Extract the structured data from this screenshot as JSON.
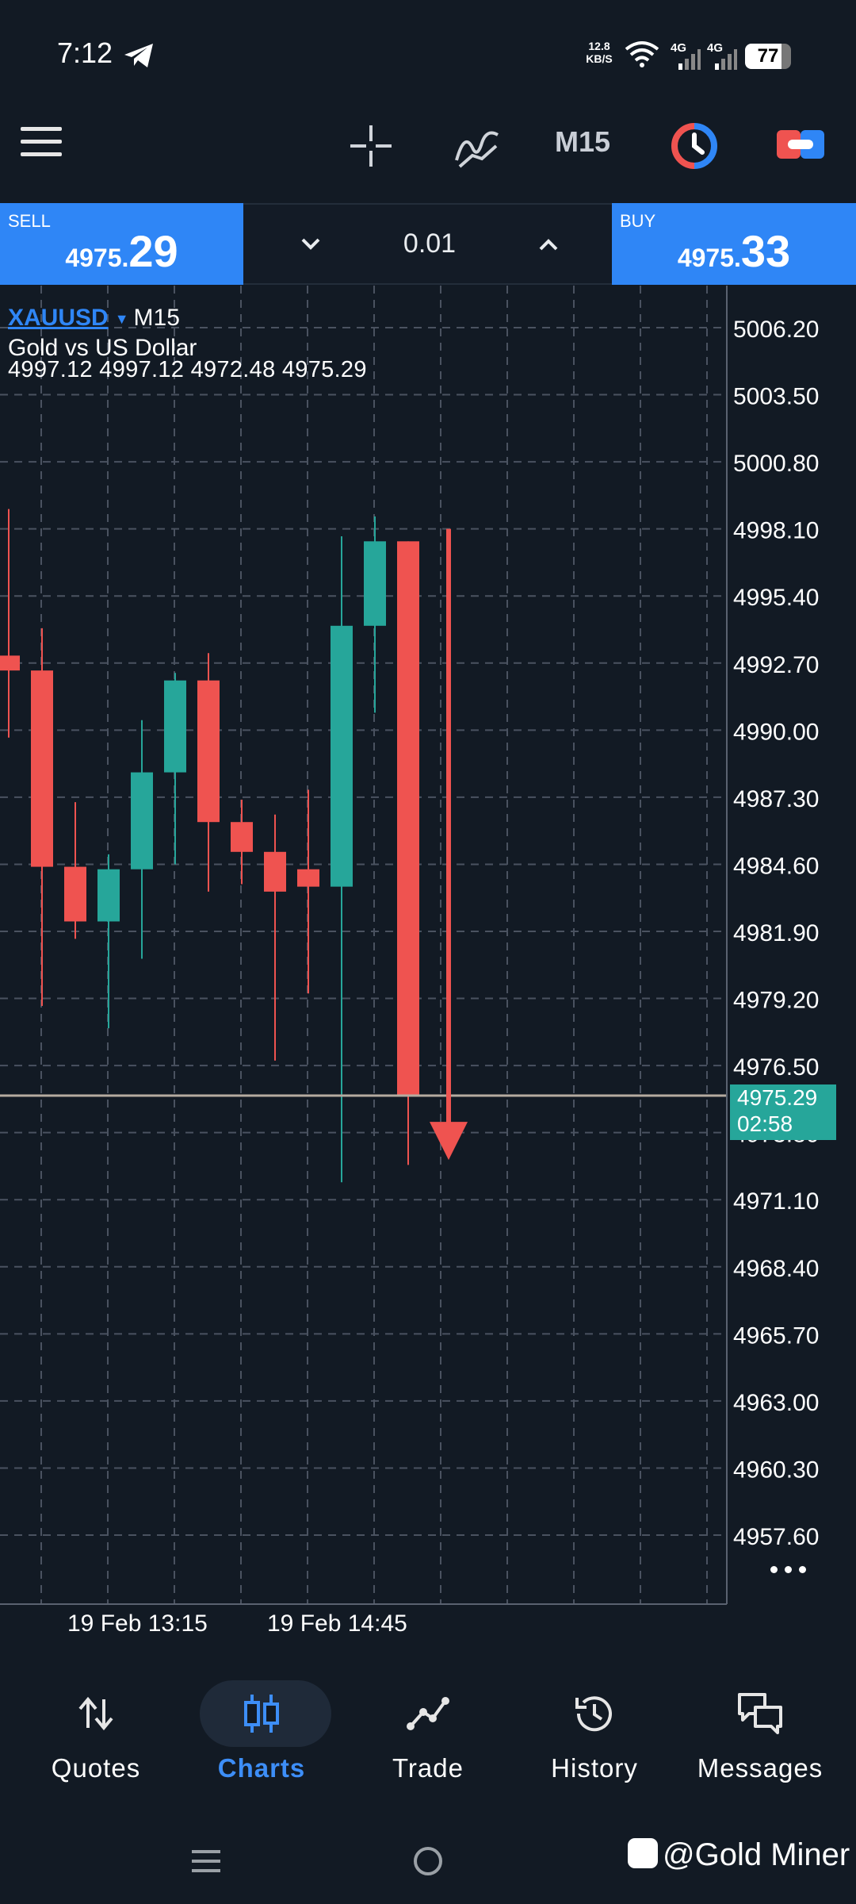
{
  "status_bar": {
    "time": "7:12",
    "net_speed_value": "12.8",
    "net_speed_unit": "KB/S",
    "signal_1": "4G",
    "signal_2": "4G",
    "battery": "77"
  },
  "toolbar": {
    "timeframe": "M15",
    "icons": [
      "menu-icon",
      "crosshair-icon",
      "indicator-icon",
      "objects-icon",
      "one-click-trading-icon"
    ],
    "colors": {
      "objects_icon": "#ef5350",
      "objects_icon_accent": "#2f86f6",
      "oneclick_icon": "#2f86f6",
      "oneclick_icon_accent": "#ef5350"
    }
  },
  "trade_bar": {
    "sell_label": "SELL",
    "sell_price_small": "4975.",
    "sell_price_big": "29",
    "buy_label": "BUY",
    "buy_price_small": "4975.",
    "buy_price_big": "33",
    "volume": "0.01",
    "accent": "#2f86f6"
  },
  "symbol": {
    "name": "XAUUSD",
    "timeframe": "M15",
    "description": "Gold vs US Dollar",
    "ohlc": "4997.12 4997.12 4972.48 4975.29"
  },
  "price_tag": {
    "price": "4975.29",
    "countdown": "02:58",
    "color": "#26a69a"
  },
  "chart_data": {
    "type": "candlestick",
    "bull_color": "#26a69a",
    "bear_color": "#ef5350",
    "y_ticks": [
      "5006.20",
      "5003.50",
      "5000.80",
      "4998.10",
      "4995.40",
      "4992.70",
      "4990.00",
      "4987.30",
      "4984.60",
      "4981.90",
      "4979.20",
      "4976.50",
      "4973.80",
      "4971.10",
      "4968.40",
      "4965.70",
      "4963.00",
      "4960.30",
      "4957.60"
    ],
    "ylim": [
      4955.0,
      5008.8
    ],
    "x_labels": [
      {
        "label": "19 Feb 13:15",
        "index": 1
      },
      {
        "label": "19 Feb 14:45",
        "index": 7
      }
    ],
    "current_price": 4975.29,
    "candles": [
      {
        "open": 4993.0,
        "high": 4998.9,
        "low": 4989.7,
        "close": 4992.4
      },
      {
        "open": 4992.4,
        "high": 4994.1,
        "low": 4978.9,
        "close": 4984.5
      },
      {
        "open": 4984.5,
        "high": 4987.1,
        "low": 4981.6,
        "close": 4982.3
      },
      {
        "open": 4982.3,
        "high": 4985.0,
        "low": 4978.0,
        "close": 4984.4
      },
      {
        "open": 4984.4,
        "high": 4990.4,
        "low": 4980.8,
        "close": 4988.3
      },
      {
        "open": 4988.3,
        "high": 4992.3,
        "low": 4984.6,
        "close": 4992.0
      },
      {
        "open": 4992.0,
        "high": 4993.1,
        "low": 4983.5,
        "close": 4986.3
      },
      {
        "open": 4986.3,
        "high": 4987.2,
        "low": 4983.8,
        "close": 4985.1
      },
      {
        "open": 4985.1,
        "high": 4986.6,
        "low": 4976.7,
        "close": 4983.5
      },
      {
        "open": 4984.4,
        "high": 4987.6,
        "low": 4979.4,
        "close": 4983.7
      },
      {
        "open": 4983.7,
        "high": 4997.8,
        "low": 4971.8,
        "close": 4994.2
      },
      {
        "open": 4994.2,
        "high": 4998.6,
        "low": 4990.7,
        "close": 4997.6
      },
      {
        "open": 4997.6,
        "high": 4997.6,
        "low": 4972.5,
        "close": 4975.3
      }
    ],
    "arrow_annotation": {
      "candle_index": 14,
      "from": 4998.1,
      "to": 4972.7,
      "color": "#ef5350",
      "direction": "down"
    }
  },
  "bottom_nav": {
    "items": [
      {
        "label": "Quotes",
        "icon": "quotes-arrows-icon"
      },
      {
        "label": "Charts",
        "icon": "candlestick-icon",
        "active": true
      },
      {
        "label": "Trade",
        "icon": "trade-line-icon"
      },
      {
        "label": "History",
        "icon": "history-clock-icon"
      },
      {
        "label": "Messages",
        "icon": "messages-bubbles-icon"
      }
    ],
    "active_color": "#3d8ef7"
  },
  "watermark": "@Gold Miner"
}
